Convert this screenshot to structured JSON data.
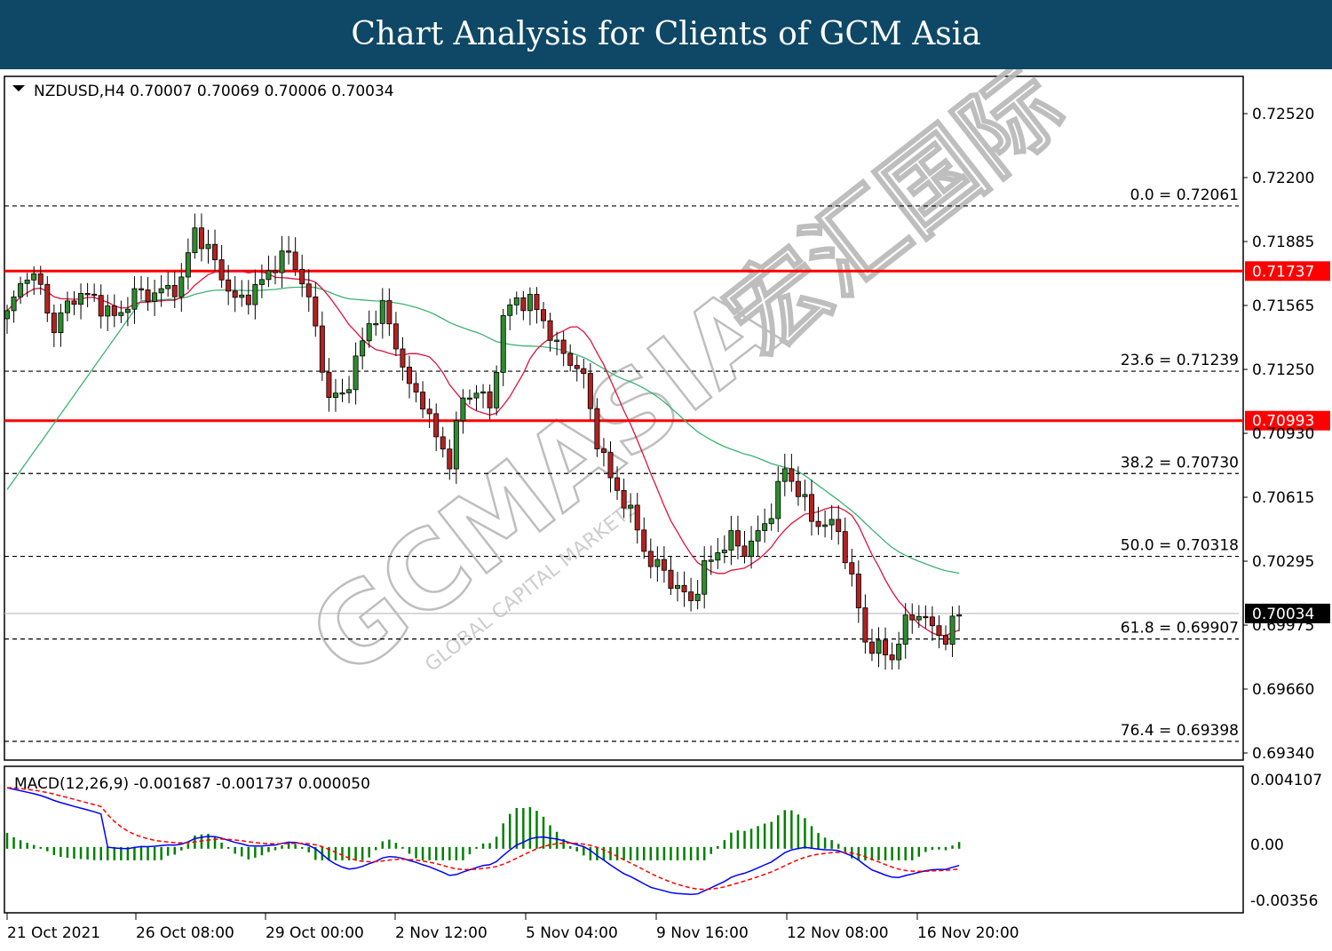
{
  "banner": {
    "title": "Chart Analysis for Clients of GCM Asia"
  },
  "chart_data": {
    "type": "candlestick",
    "symbol_header": "NZDUSD,H4  0.70007 0.70069 0.70006 0.70034",
    "ylim": [
      0.6931,
      0.7268
    ],
    "y_ticks": [
      "0.72520",
      "0.72200",
      "0.71885",
      "0.71565",
      "0.71250",
      "0.70930",
      "0.70615",
      "0.70295",
      "0.69975",
      "0.69660",
      "0.69340"
    ],
    "x_ticks": [
      "21 Oct 2021",
      "26 Oct 08:00",
      "29 Oct 00:00",
      "2 Nov 12:00",
      "5 Nov 04:00",
      "9 Nov 16:00",
      "12 Nov 08:00",
      "16 Nov 20:00"
    ],
    "current_price": {
      "label": "0.70034",
      "value": 0.70034
    },
    "resistance_lines": [
      {
        "label": "0.71737",
        "value": 0.71737,
        "color": "#ff0000"
      },
      {
        "label": "0.70993",
        "value": 0.70993,
        "color": "#ff0000"
      }
    ],
    "fibonacci_levels": [
      {
        "label": "0.0 = 0.72061",
        "value": 0.72061
      },
      {
        "label": "23.6 = 0.71239",
        "value": 0.71239
      },
      {
        "label": "38.2 = 0.70730",
        "value": 0.7073
      },
      {
        "label": "50.0 = 0.70318",
        "value": 0.70318
      },
      {
        "label": "61.8 = 0.69907",
        "value": 0.69907
      },
      {
        "label": "76.4 = 0.69398",
        "value": 0.69398
      }
    ],
    "anchors": [
      [
        0,
        0.7152
      ],
      [
        3,
        0.7174
      ],
      [
        5,
        0.7165
      ],
      [
        7,
        0.7145
      ],
      [
        10,
        0.7162
      ],
      [
        13,
        0.716
      ],
      [
        16,
        0.715
      ],
      [
        19,
        0.7162
      ],
      [
        23,
        0.7163
      ],
      [
        26,
        0.7168
      ],
      [
        28,
        0.7195
      ],
      [
        32,
        0.7172
      ],
      [
        34,
        0.7158
      ],
      [
        36,
        0.7162
      ],
      [
        38,
        0.7168
      ],
      [
        40,
        0.7178
      ],
      [
        42,
        0.7182
      ],
      [
        44,
        0.717
      ],
      [
        46,
        0.7145
      ],
      [
        48,
        0.711
      ],
      [
        50,
        0.7112
      ],
      [
        52,
        0.7128
      ],
      [
        54,
        0.7148
      ],
      [
        56,
        0.7155
      ],
      [
        58,
        0.7138
      ],
      [
        60,
        0.7115
      ],
      [
        62,
        0.711
      ],
      [
        64,
        0.709
      ],
      [
        66,
        0.708
      ],
      [
        68,
        0.711
      ],
      [
        70,
        0.7115
      ],
      [
        72,
        0.7105
      ],
      [
        74,
        0.715
      ],
      [
        76,
        0.716
      ],
      [
        78,
        0.7158
      ],
      [
        80,
        0.715
      ],
      [
        82,
        0.7135
      ],
      [
        84,
        0.713
      ],
      [
        86,
        0.712
      ],
      [
        88,
        0.709
      ],
      [
        90,
        0.707
      ],
      [
        92,
        0.706
      ],
      [
        94,
        0.7045
      ],
      [
        96,
        0.7028
      ],
      [
        98,
        0.7025
      ],
      [
        100,
        0.7015
      ],
      [
        102,
        0.701
      ],
      [
        104,
        0.7025
      ],
      [
        106,
        0.7035
      ],
      [
        108,
        0.704
      ],
      [
        110,
        0.7035
      ],
      [
        112,
        0.7042
      ],
      [
        114,
        0.7055
      ],
      [
        116,
        0.7075
      ],
      [
        118,
        0.7065
      ],
      [
        120,
        0.705
      ],
      [
        122,
        0.7048
      ],
      [
        124,
        0.7045
      ],
      [
        126,
        0.702
      ],
      [
        128,
        0.699
      ],
      [
        130,
        0.6985
      ],
      [
        132,
        0.6982
      ],
      [
        134,
        0.6998
      ],
      [
        136,
        0.7005
      ],
      [
        138,
        0.6995
      ],
      [
        140,
        0.6992
      ],
      [
        142,
        0.7003
      ]
    ],
    "bar_count": 143,
    "ma_fast_color": "#dc143c",
    "ma_slow_color": "#3cb371",
    "bull_color": "#2e8b2e",
    "bear_color": "#b22222",
    "macd": {
      "header": "MACD(12,26,9) -0.001687 -0.001737 0.000050",
      "ylim": [
        -0.0041,
        0.0047
      ],
      "y_ticks": [
        "0.004107",
        "0.00",
        "-0.00356"
      ],
      "histogram_color": "#008000",
      "signal_color": "#ff0000",
      "main_color": "#0000ff"
    },
    "watermark": {
      "brand": "GCMASIA",
      "cn": "宏汇国际",
      "tag": "GLOBAL CAPITAL MARKETS"
    }
  }
}
